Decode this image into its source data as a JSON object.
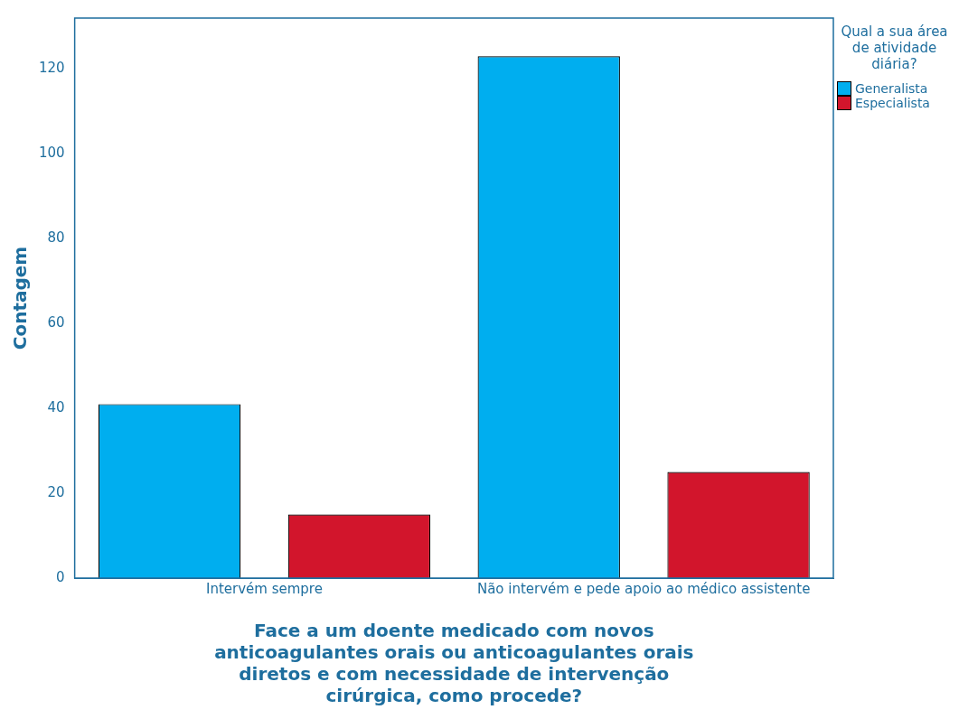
{
  "chart_data": {
    "type": "bar",
    "xlabel": "Face a um doente medicado com novos anticoagulantes orais ou anticoagulantes orais diretos e com necessidade de intervenção cirúrgica, como procede?",
    "ylabel": "Contagem",
    "legend_title": "Qual a sua área de atividade diária?",
    "categories": [
      "Intervém sempre",
      "Não intervém e pede apoio ao médico assistente"
    ],
    "series": [
      {
        "name": "Generalista",
        "color": "#00aeef",
        "values": [
          41,
          123
        ]
      },
      {
        "name": "Especialista",
        "color": "#d2152c",
        "values": [
          15,
          25
        ]
      }
    ],
    "ylim": [
      0,
      132
    ],
    "yticks": [
      0,
      20,
      40,
      60,
      80,
      100,
      120
    ],
    "grid": false,
    "legend": "top right"
  }
}
